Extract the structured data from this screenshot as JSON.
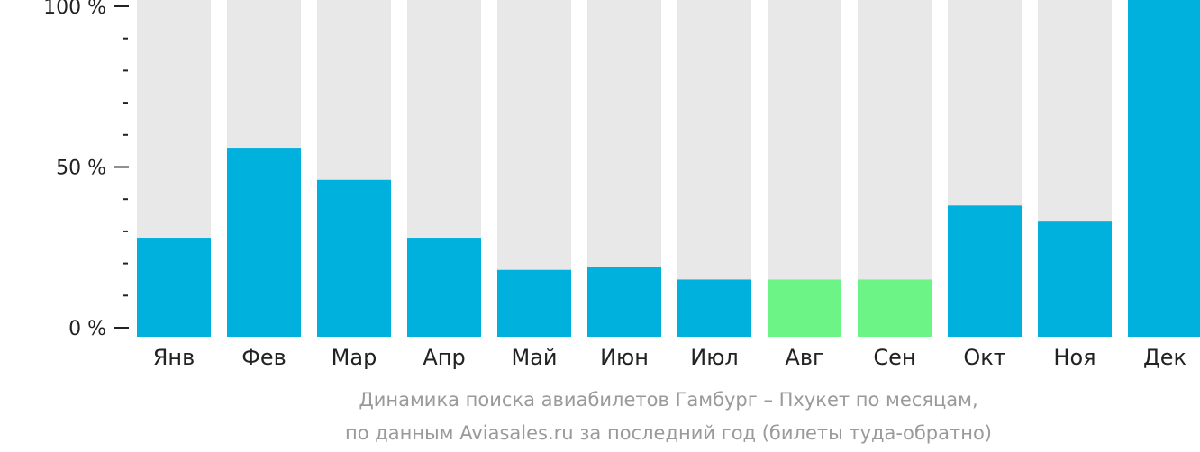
{
  "chart_data": {
    "type": "bar",
    "categories": [
      "Янв",
      "Фев",
      "Мар",
      "Апр",
      "Май",
      "Июн",
      "Июл",
      "Авг",
      "Сен",
      "Окт",
      "Ноя",
      "Дек"
    ],
    "values": [
      28,
      56,
      46,
      28,
      18,
      19,
      15,
      15,
      15,
      38,
      33,
      100
    ],
    "ylim": [
      0,
      100
    ],
    "y_ticks": [
      {
        "value": 100,
        "label": "100 %"
      },
      {
        "value": 50,
        "label": "50 %"
      },
      {
        "value": 0,
        "label": "0 %"
      }
    ],
    "minor_ticks": [
      90,
      80,
      70,
      60,
      40,
      30,
      20,
      10
    ],
    "highlight_categories": [
      "Авг",
      "Сен"
    ],
    "colors": {
      "bar": "#00b0dd",
      "highlight": "#6cf486",
      "background_bar": "#e8e8e8",
      "axis": "#222222"
    },
    "caption_lines": [
      "Динамика поиска авиабилетов Гамбург – Пхукет по месяцам,",
      "по данным Aviasales.ru за последний год (билеты туда-обратно)"
    ]
  }
}
